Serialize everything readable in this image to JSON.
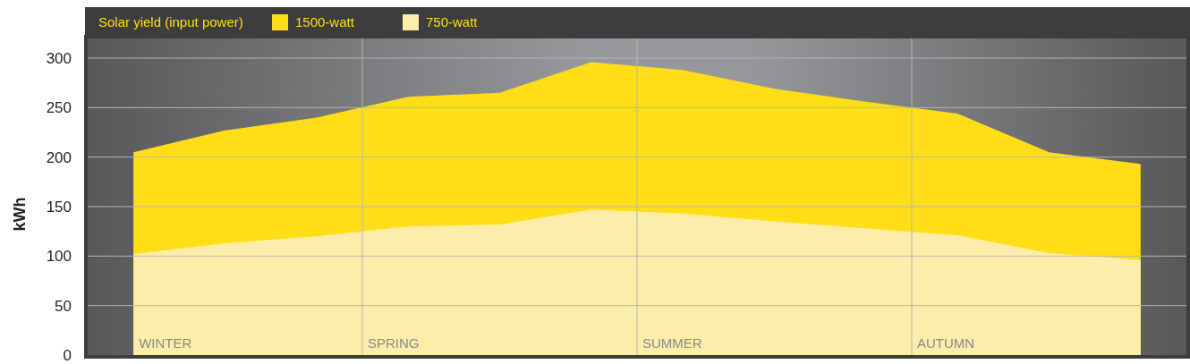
{
  "chart_data": {
    "type": "area",
    "ylabel": "kWh",
    "legend_title": "Solar yield (input power)",
    "legend": "top left",
    "grid": "y",
    "categories": [
      null,
      null,
      null,
      null,
      null,
      null,
      null,
      null,
      null,
      null,
      null,
      null
    ],
    "annotations": [
      "WINTER",
      "SPRING",
      "SUMMER",
      "AUTUMN"
    ],
    "ylim": [
      0,
      300
    ],
    "yticks": [
      0,
      50,
      100,
      150,
      200,
      250,
      300
    ],
    "series": [
      {
        "name": "1500-watt",
        "color": "#ffde17",
        "values": [
          205,
          227,
          240,
          261,
          265,
          296,
          288,
          269,
          256,
          244,
          205,
          193
        ]
      },
      {
        "name": "750-watt",
        "color": "#fcedaa",
        "values": [
          102,
          113,
          120,
          130,
          132,
          147,
          143,
          135,
          128,
          121,
          103,
          96
        ]
      }
    ]
  }
}
